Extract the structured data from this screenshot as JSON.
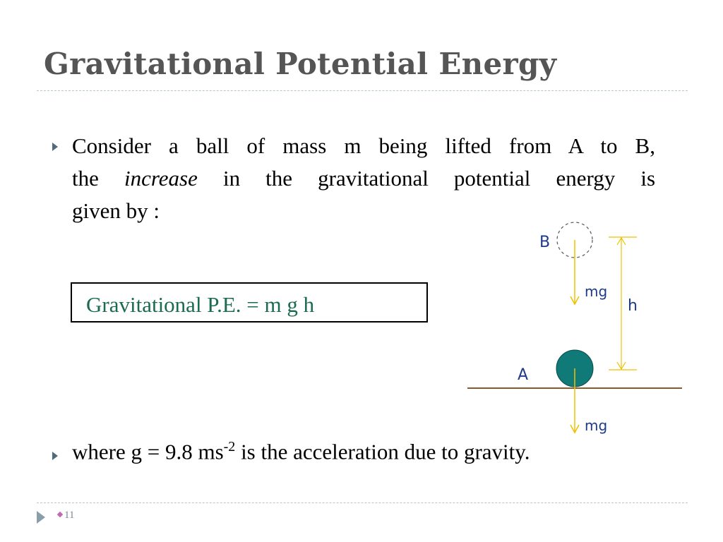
{
  "slide": {
    "title": "Gravitational Potential Energy",
    "bullet1": {
      "line1": "Consider a ball of mass m being lifted from A to B,",
      "line2_pre": "the",
      "line2_em": "increase",
      "line2_post": "in the gravitational potential energy is",
      "line3": "given by :"
    },
    "formula": "Gravitational P.E. =  m g h",
    "bullet2": {
      "pre": "where g = 9.8 ms",
      "sup": "-2",
      "post": " is the acceleration due to gravity."
    },
    "page_number": "11"
  },
  "diagram": {
    "label_b": "B",
    "label_a": "A",
    "label_h": "h",
    "label_mg_top": "mg",
    "label_mg_bottom": "mg",
    "colors": {
      "ball": "#0f7a78",
      "ground": "#8b5a2b",
      "arrow": "#f0c000",
      "label": "#1e3a8a",
      "formula_text": "#1a6b50"
    }
  }
}
